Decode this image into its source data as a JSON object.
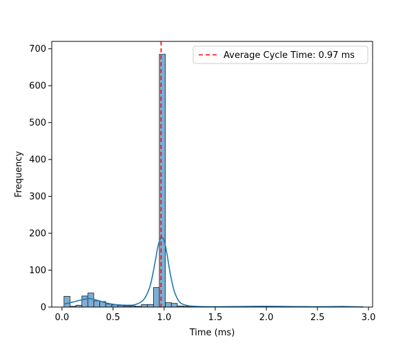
{
  "chart_data": {
    "type": "bar",
    "title": "",
    "xlabel": "Time (ms)",
    "ylabel": "Frequency",
    "xlim": [
      -0.1,
      3.04
    ],
    "ylim": [
      0,
      720
    ],
    "xticks": [
      0.0,
      0.5,
      1.0,
      1.5,
      2.0,
      2.5,
      3.0
    ],
    "xtick_labels": [
      "0.0",
      "0.5",
      "1.0",
      "1.5",
      "2.0",
      "2.5",
      "3.0"
    ],
    "yticks": [
      0,
      100,
      200,
      300,
      400,
      500,
      600,
      700
    ],
    "ytick_labels": [
      "0",
      "100",
      "200",
      "300",
      "400",
      "500",
      "600",
      "700"
    ],
    "grid": false,
    "legend_position": "top-right",
    "bin_width": 0.0583,
    "bins": [
      {
        "x0": 0.02,
        "value": 29
      },
      {
        "x0": 0.078,
        "value": 2
      },
      {
        "x0": 0.137,
        "value": 5
      },
      {
        "x0": 0.195,
        "value": 30
      },
      {
        "x0": 0.253,
        "value": 38
      },
      {
        "x0": 0.312,
        "value": 17
      },
      {
        "x0": 0.37,
        "value": 15
      },
      {
        "x0": 0.428,
        "value": 8
      },
      {
        "x0": 0.487,
        "value": 6
      },
      {
        "x0": 0.545,
        "value": 4
      },
      {
        "x0": 0.603,
        "value": 3
      },
      {
        "x0": 0.662,
        "value": 3
      },
      {
        "x0": 0.72,
        "value": 2
      },
      {
        "x0": 0.778,
        "value": 7
      },
      {
        "x0": 0.837,
        "value": 7
      },
      {
        "x0": 0.895,
        "value": 53
      },
      {
        "x0": 0.953,
        "value": 685
      },
      {
        "x0": 1.012,
        "value": 12
      },
      {
        "x0": 1.07,
        "value": 10
      },
      {
        "x0": 1.128,
        "value": 3
      },
      {
        "x0": 1.187,
        "value": 2
      },
      {
        "x0": 1.245,
        "value": 1
      }
    ],
    "kde": {
      "x": [
        0.02,
        0.1,
        0.2,
        0.27,
        0.35,
        0.45,
        0.55,
        0.65,
        0.72,
        0.8,
        0.86,
        0.9,
        0.94,
        0.97,
        1.0,
        1.03,
        1.06,
        1.1,
        1.15,
        1.2,
        1.25,
        1.3,
        1.4,
        1.6,
        1.8,
        2.0,
        2.2,
        2.4,
        2.6,
        2.75,
        2.9,
        2.95
      ],
      "y": [
        8,
        13,
        20,
        23,
        18,
        10,
        6,
        5,
        7,
        20,
        55,
        105,
        165,
        188,
        180,
        140,
        90,
        42,
        14,
        6,
        3,
        2,
        1,
        1,
        1.5,
        2,
        1.5,
        1,
        1,
        1.5,
        0.5,
        0.3
      ]
    },
    "reference_line": {
      "x": 0.97,
      "label": "Average Cycle Time: 0.97 ms",
      "color": "#ff0000",
      "style": "dashed"
    },
    "colors": {
      "bar_fill": "#7eaed3",
      "bar_edge": "#1a1a1a",
      "kde_line": "#1f77b4",
      "axis": "#000000"
    }
  }
}
